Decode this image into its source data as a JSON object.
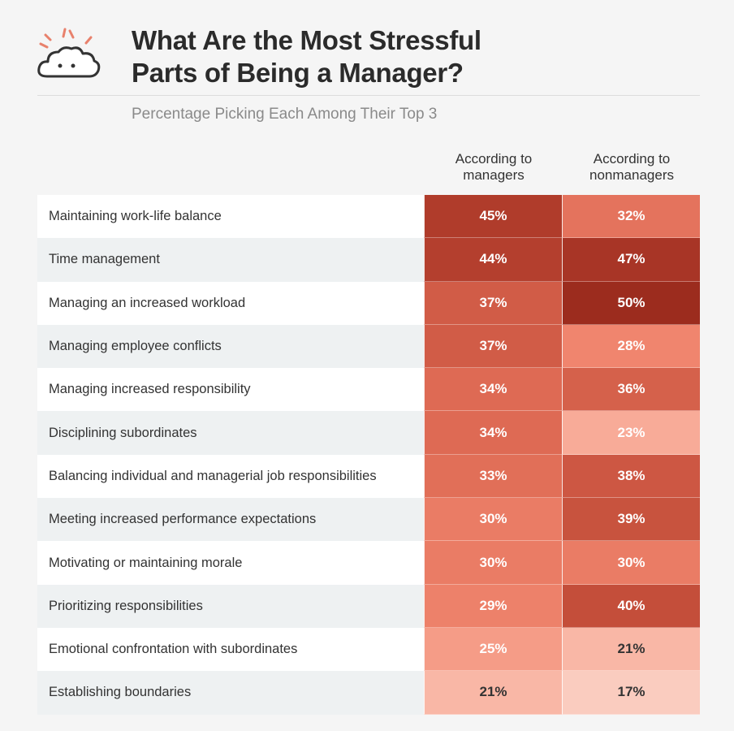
{
  "title_line1": "What Are the Most Stressful",
  "title_line2": "Parts of Being a Manager?",
  "subtitle": "Percentage Picking Each Among Their Top 3",
  "logo_icon": "stressed-cloud-icon",
  "colors": {
    "scale_low": "#fbd6cb",
    "scale_high": "#9e2d1e",
    "label_row_alt": "#eef1f2"
  },
  "chart_data": {
    "type": "table",
    "title": "What Are the Most Stressful Parts of Being a Manager?",
    "subtitle": "Percentage Picking Each Among Their Top 3",
    "columns": [
      "According to managers",
      "According to nonmanagers"
    ],
    "column_lines": [
      [
        "According to",
        "managers"
      ],
      [
        "According to",
        "nonmanagers"
      ]
    ],
    "rows": [
      {
        "label": "Maintaining work-life balance",
        "managers": 45,
        "nonmanagers": 32
      },
      {
        "label": "Time management",
        "managers": 44,
        "nonmanagers": 47
      },
      {
        "label": "Managing an increased workload",
        "managers": 37,
        "nonmanagers": 50
      },
      {
        "label": "Managing employee conflicts",
        "managers": 37,
        "nonmanagers": 28
      },
      {
        "label": "Managing increased responsibility",
        "managers": 34,
        "nonmanagers": 36
      },
      {
        "label": "Disciplining subordinates",
        "managers": 34,
        "nonmanagers": 23
      },
      {
        "label": "Balancing individual and managerial job responsibilities",
        "managers": 33,
        "nonmanagers": 38
      },
      {
        "label": "Meeting increased performance expectations",
        "managers": 30,
        "nonmanagers": 39
      },
      {
        "label": "Motivating or maintaining morale",
        "managers": 30,
        "nonmanagers": 30
      },
      {
        "label": "Prioritizing responsibilities",
        "managers": 29,
        "nonmanagers": 40
      },
      {
        "label": "Emotional confrontation with subordinates",
        "managers": 25,
        "nonmanagers": 21
      },
      {
        "label": "Establishing boundaries",
        "managers": 21,
        "nonmanagers": 17
      }
    ],
    "unit": "%"
  }
}
